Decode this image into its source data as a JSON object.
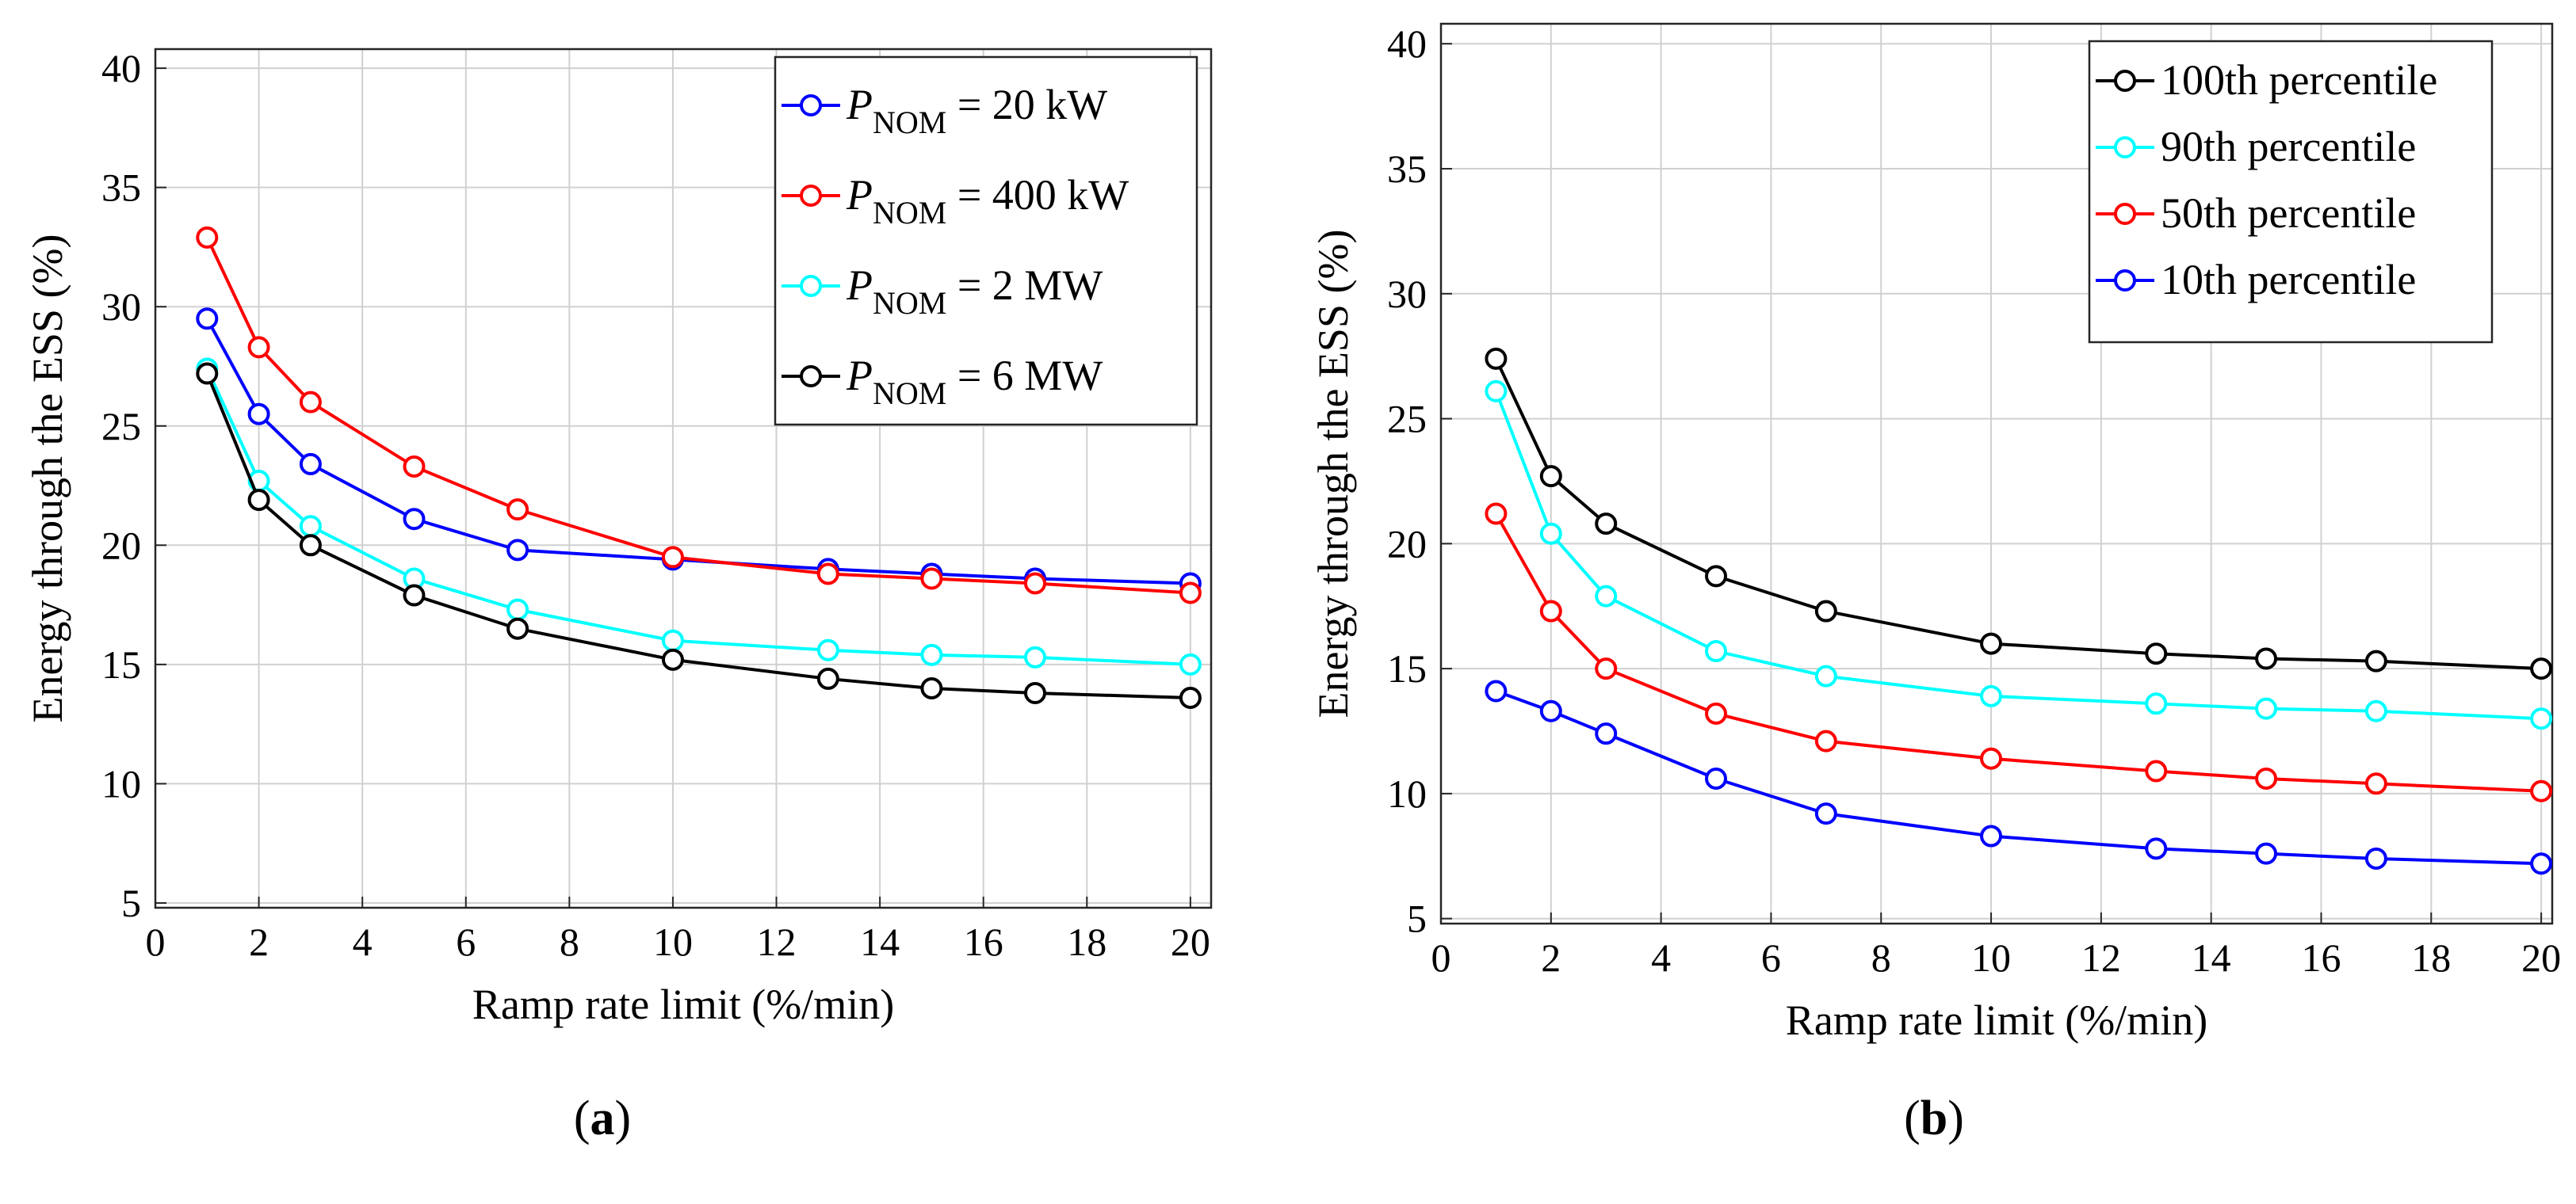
{
  "chart_data": [
    {
      "type": "line",
      "panel_label": "a",
      "xlabel": "Ramp rate limit (%/min)",
      "ylabel": "Energy through the ESS (%)",
      "xlim": [
        0,
        20.4
      ],
      "ylim": [
        4.8,
        40.8
      ],
      "xticks": [
        0,
        2,
        4,
        6,
        8,
        10,
        12,
        14,
        16,
        18,
        20
      ],
      "yticks": [
        5,
        10,
        15,
        20,
        25,
        30,
        35,
        40
      ],
      "grid": true,
      "legend_position": "top-right",
      "x": [
        1,
        2,
        3,
        5,
        7,
        10,
        13,
        15,
        17,
        20
      ],
      "series": [
        {
          "name": "P",
          "name_sub": "NOM",
          "name_rest": " = 20 kW",
          "color": "#0000ff",
          "values": [
            29.5,
            25.5,
            23.4,
            21.1,
            19.8,
            19.4,
            19.0,
            18.8,
            18.6,
            18.4
          ]
        },
        {
          "name": "P",
          "name_sub": "NOM",
          "name_rest": " = 400 kW",
          "color": "#ff0000",
          "values": [
            32.9,
            28.3,
            26.0,
            23.3,
            21.5,
            19.5,
            18.8,
            18.6,
            18.4,
            18.0
          ]
        },
        {
          "name": "P",
          "name_sub": "NOM",
          "name_rest": " = 2 MW",
          "color": "#00ffff",
          "values": [
            27.4,
            22.7,
            20.8,
            18.6,
            17.3,
            16.0,
            15.6,
            15.4,
            15.3,
            15.0
          ]
        },
        {
          "name": "P",
          "name_sub": "NOM",
          "name_rest": " = 6 MW",
          "color": "#000000",
          "values": [
            27.2,
            21.9,
            20.0,
            17.9,
            16.5,
            15.2,
            14.4,
            14.0,
            13.8,
            13.6
          ]
        }
      ]
    },
    {
      "type": "line",
      "panel_label": "b",
      "xlabel": "Ramp rate limit (%/min)",
      "ylabel": "Energy through the ESS (%)",
      "xlim": [
        0,
        20.2
      ],
      "ylim": [
        4.8,
        40.8
      ],
      "xticks": [
        0,
        2,
        4,
        6,
        8,
        10,
        12,
        14,
        16,
        18,
        20
      ],
      "yticks": [
        5,
        10,
        15,
        20,
        25,
        30,
        35,
        40
      ],
      "grid": true,
      "legend_position": "top-right",
      "x": [
        1,
        2,
        3,
        5,
        7,
        10,
        13,
        15,
        17,
        20
      ],
      "series": [
        {
          "name": "100th percentile",
          "color": "#000000",
          "values": [
            27.4,
            22.7,
            20.8,
            18.7,
            17.3,
            16.0,
            15.6,
            15.4,
            15.3,
            15.0
          ]
        },
        {
          "name": "90th percentile",
          "color": "#00ffff",
          "values": [
            26.1,
            20.4,
            17.9,
            15.7,
            14.7,
            13.9,
            13.6,
            13.4,
            13.3,
            13.0
          ]
        },
        {
          "name": "50th percentile",
          "color": "#ff0000",
          "values": [
            21.2,
            17.3,
            15.0,
            13.2,
            12.1,
            11.4,
            10.9,
            10.6,
            10.4,
            10.1
          ]
        },
        {
          "name": "10th percentile",
          "color": "#0000ff",
          "values": [
            14.1,
            13.3,
            12.4,
            10.6,
            9.2,
            8.3,
            7.8,
            7.6,
            7.4,
            7.2
          ]
        }
      ]
    }
  ]
}
